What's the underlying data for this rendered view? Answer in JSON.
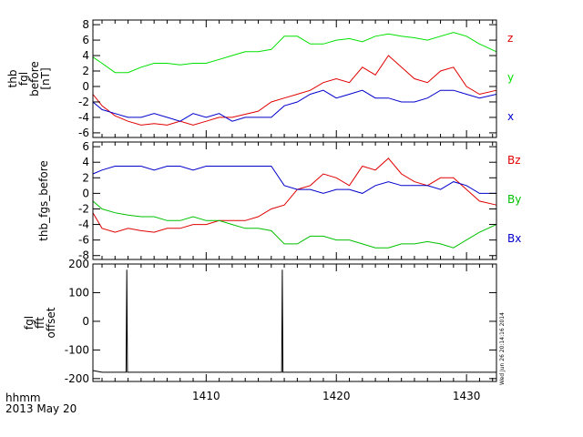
{
  "figure": {
    "footer_line1": "hhmm",
    "footer_line2": "2013 May 20",
    "timestamp": "Wed Jun 26 20:14:16 2014"
  },
  "chart_data": [
    {
      "type": "line",
      "ylabel_lines": [
        "thb",
        "fgl",
        "before",
        "[nT]"
      ],
      "ylim": [
        -6.6,
        8.6
      ],
      "yticks": [
        -6,
        -4,
        -2,
        0,
        2,
        4,
        6,
        8
      ],
      "xlim": [
        1401.3,
        1432.3
      ],
      "xticks": [
        1410,
        1420,
        1430
      ],
      "series": [
        {
          "name": "z",
          "color": "#e00000",
          "x": [
            1401.3,
            1402,
            1403,
            1404,
            1405,
            1406,
            1407,
            1408,
            1409,
            1410,
            1411,
            1412,
            1413,
            1414,
            1415,
            1416,
            1417,
            1418,
            1419,
            1420,
            1421,
            1422,
            1423,
            1424,
            1425,
            1426,
            1427,
            1428,
            1429,
            1430,
            1431,
            1432.3
          ],
          "y": [
            -1.0,
            -2.5,
            -3.8,
            -4.5,
            -5.0,
            -4.8,
            -5.0,
            -4.5,
            -5.0,
            -4.5,
            -4.0,
            -4.0,
            -3.6,
            -3.2,
            -2.0,
            -1.5,
            -1.0,
            -0.5,
            0.5,
            1.0,
            0.5,
            2.5,
            1.5,
            4.0,
            2.5,
            1.0,
            0.5,
            2.0,
            2.5,
            0.0,
            -1.0,
            -0.5
          ]
        },
        {
          "name": "y",
          "color": "#00e000",
          "x": [
            1401.3,
            1402,
            1403,
            1404,
            1405,
            1406,
            1407,
            1408,
            1409,
            1410,
            1411,
            1412,
            1413,
            1414,
            1415,
            1416,
            1417,
            1418,
            1419,
            1420,
            1421,
            1422,
            1423,
            1424,
            1425,
            1426,
            1427,
            1428,
            1429,
            1430,
            1431,
            1432.3
          ],
          "y": [
            3.8,
            3.0,
            1.8,
            1.8,
            2.5,
            3.0,
            3.0,
            2.8,
            3.0,
            3.0,
            3.5,
            4.0,
            4.5,
            4.5,
            4.8,
            6.5,
            6.5,
            5.5,
            5.5,
            6.0,
            6.2,
            5.8,
            6.5,
            6.8,
            6.5,
            6.3,
            6.0,
            6.5,
            7.0,
            6.5,
            5.5,
            4.5
          ]
        },
        {
          "name": "x",
          "color": "#0000cc",
          "x": [
            1401.3,
            1402,
            1403,
            1404,
            1405,
            1406,
            1407,
            1408,
            1409,
            1410,
            1411,
            1412,
            1413,
            1414,
            1415,
            1416,
            1417,
            1418,
            1419,
            1420,
            1421,
            1422,
            1423,
            1424,
            1425,
            1426,
            1427,
            1428,
            1429,
            1430,
            1431,
            1432.3
          ],
          "y": [
            -2.0,
            -3.0,
            -3.5,
            -4.0,
            -4.0,
            -3.5,
            -4.0,
            -4.5,
            -3.5,
            -4.0,
            -3.5,
            -4.5,
            -4.0,
            -4.0,
            -4.0,
            -2.5,
            -2.0,
            -1.0,
            -0.5,
            -1.5,
            -1.0,
            -0.5,
            -1.5,
            -1.5,
            -2.0,
            -2.0,
            -1.5,
            -0.5,
            -0.5,
            -1.0,
            -1.5,
            -1.0
          ]
        }
      ]
    },
    {
      "type": "line",
      "ylabel_lines": [
        "thb_fgs_before"
      ],
      "ylim": [
        -8.5,
        6.6
      ],
      "yticks": [
        -8,
        -6,
        -4,
        -2,
        0,
        2,
        4,
        6
      ],
      "xlim": [
        1401.3,
        1432.3
      ],
      "xticks": [
        1410,
        1420,
        1430
      ],
      "series": [
        {
          "name": "Bz",
          "color": "#e00000",
          "x": [
            1401.3,
            1402,
            1403,
            1404,
            1405,
            1406,
            1407,
            1408,
            1409,
            1410,
            1411,
            1412,
            1413,
            1414,
            1415,
            1416,
            1417,
            1418,
            1419,
            1420,
            1421,
            1422,
            1423,
            1424,
            1425,
            1426,
            1427,
            1428,
            1429,
            1430,
            1431,
            1432.3
          ],
          "y": [
            -2.5,
            -4.5,
            -5.0,
            -4.5,
            -4.8,
            -5.0,
            -4.5,
            -4.5,
            -4.0,
            -4.0,
            -3.5,
            -3.5,
            -3.5,
            -3.0,
            -2.0,
            -1.5,
            0.5,
            1.0,
            2.5,
            2.0,
            1.0,
            3.5,
            3.0,
            4.5,
            2.5,
            1.5,
            1.0,
            2.0,
            2.0,
            0.5,
            -1.0,
            -1.5
          ]
        },
        {
          "name": "By",
          "color": "#00c000",
          "x": [
            1401.3,
            1402,
            1403,
            1404,
            1405,
            1406,
            1407,
            1408,
            1409,
            1410,
            1411,
            1412,
            1413,
            1414,
            1415,
            1416,
            1417,
            1418,
            1419,
            1420,
            1421,
            1422,
            1423,
            1424,
            1425,
            1426,
            1427,
            1428,
            1429,
            1430,
            1431,
            1432.3
          ],
          "y": [
            -1.0,
            -2.0,
            -2.5,
            -2.8,
            -3.0,
            -3.0,
            -3.5,
            -3.5,
            -3.0,
            -3.5,
            -3.5,
            -4.0,
            -4.5,
            -4.5,
            -4.8,
            -6.5,
            -6.5,
            -5.5,
            -5.5,
            -6.0,
            -6.0,
            -6.5,
            -7.0,
            -7.0,
            -6.5,
            -6.5,
            -6.2,
            -6.5,
            -7.0,
            -6.0,
            -5.0,
            -4.0
          ]
        },
        {
          "name": "Bx",
          "color": "#0000cc",
          "x": [
            1401.3,
            1402,
            1403,
            1404,
            1405,
            1406,
            1407,
            1408,
            1409,
            1410,
            1411,
            1412,
            1413,
            1414,
            1415,
            1416,
            1417,
            1418,
            1419,
            1420,
            1421,
            1422,
            1423,
            1424,
            1425,
            1426,
            1427,
            1428,
            1429,
            1430,
            1431,
            1432.3
          ],
          "y": [
            2.5,
            3.0,
            3.5,
            3.5,
            3.5,
            3.0,
            3.5,
            3.5,
            3.0,
            3.5,
            3.5,
            3.5,
            3.5,
            3.5,
            3.5,
            1.0,
            0.5,
            0.5,
            0.0,
            0.5,
            0.5,
            0.0,
            1.0,
            1.5,
            1.0,
            1.0,
            1.0,
            0.5,
            1.5,
            1.0,
            0.0,
            0.0
          ]
        }
      ]
    },
    {
      "type": "line",
      "ylabel_lines": [
        "fgl",
        "fft",
        "offset"
      ],
      "ylim": [
        -210,
        200
      ],
      "yticks": [
        -200,
        -100,
        0,
        100,
        200
      ],
      "xlim": [
        1401.3,
        1432.3
      ],
      "xticks": [
        1410,
        1420,
        1430
      ],
      "series": [
        {
          "color": "#000000",
          "x": [
            1401.3,
            1402,
            1403,
            1403.85,
            1403.9,
            1403.95,
            1405,
            1407,
            1409,
            1411,
            1413,
            1415,
            1415.8,
            1415.85,
            1415.9,
            1417,
            1419,
            1421,
            1423,
            1425,
            1427,
            1429,
            1431,
            1432.3
          ],
          "y": [
            -172,
            -178,
            -178,
            -178,
            180,
            -178,
            -178,
            -178,
            -178,
            -178,
            -178,
            -178,
            -178,
            180,
            -178,
            -178,
            -178,
            -178,
            -178,
            -178,
            -178,
            -178,
            -178,
            -178
          ]
        }
      ]
    }
  ]
}
